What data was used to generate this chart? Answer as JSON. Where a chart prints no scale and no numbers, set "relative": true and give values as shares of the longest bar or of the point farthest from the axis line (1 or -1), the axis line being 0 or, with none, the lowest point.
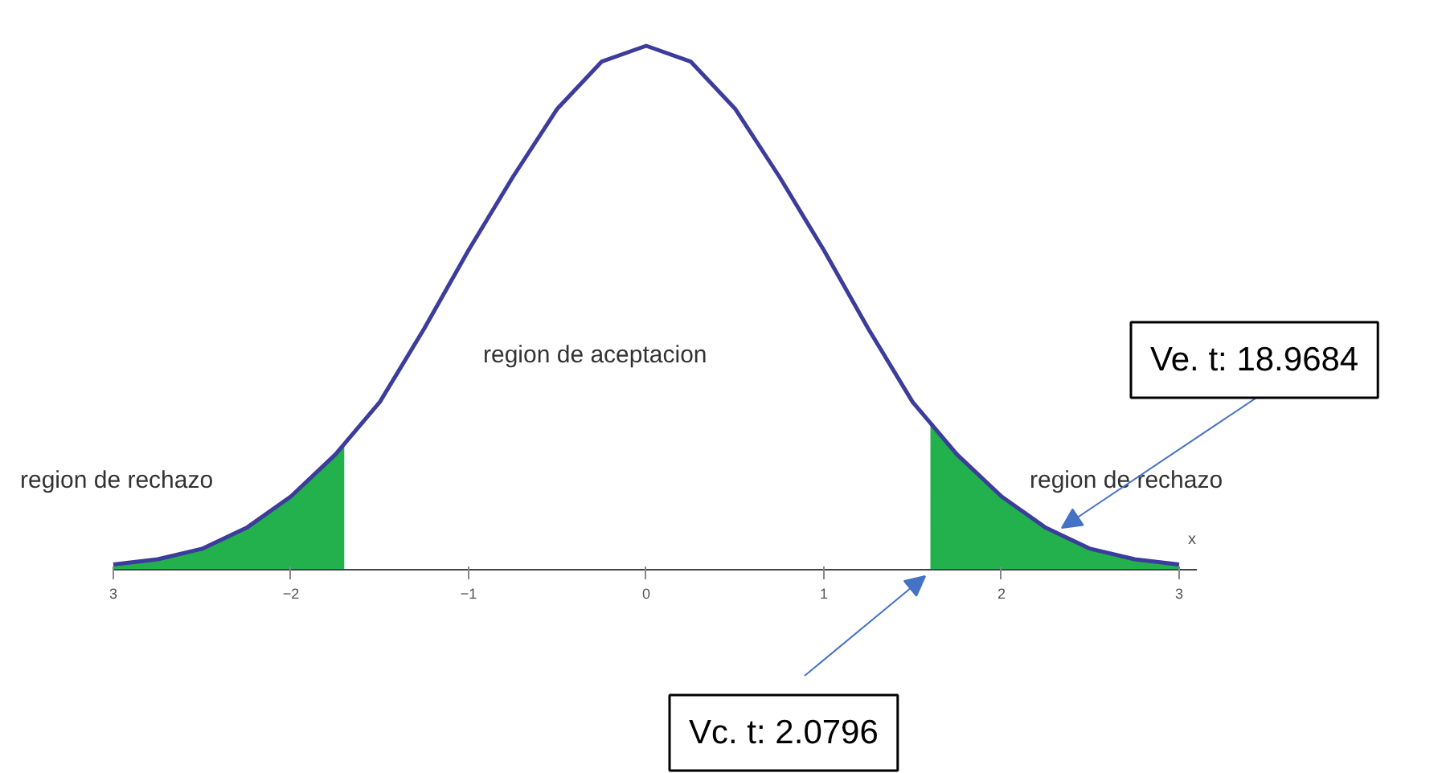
{
  "chart_data": {
    "type": "line",
    "relative": true,
    "xlabel": "x",
    "xlim": [
      -3,
      3.1
    ],
    "xticks": [
      {
        "value": -3,
        "label": "3"
      },
      -2,
      -1,
      0,
      1,
      2,
      3
    ],
    "grid": false,
    "series": [
      {
        "color": "#3c3c9c",
        "x": [
          -3,
          -2.75,
          -2.5,
          -2.25,
          -2,
          -1.75,
          -1.5,
          -1.25,
          -1,
          -0.75,
          -0.5,
          -0.25,
          0,
          0.25,
          0.5,
          0.75,
          1,
          1.25,
          1.5,
          1.75,
          2,
          2.25,
          2.5,
          2.75,
          3
        ],
        "values": [
          0.01,
          0.02,
          0.04,
          0.08,
          0.14,
          0.22,
          0.32,
          0.46,
          0.61,
          0.75,
          0.88,
          0.97,
          1,
          0.97,
          0.88,
          0.75,
          0.61,
          0.46,
          0.32,
          0.22,
          0.14,
          0.08,
          0.04,
          0.02,
          0.01
        ]
      },
      {
        "type": "area",
        "color": "#22b14c",
        "x": [
          -3,
          -2.75,
          -2.5,
          -2.25,
          -2,
          -1.75,
          -1.7
        ],
        "values": [
          0.01,
          0.02,
          0.04,
          0.08,
          0.14,
          0.22,
          0.24
        ]
      },
      {
        "type": "area",
        "color": "#22b14c",
        "x": [
          1.6,
          1.75,
          2,
          2.25,
          2.5,
          2.75,
          3
        ],
        "values": [
          0.28,
          0.22,
          0.14,
          0.08,
          0.04,
          0.02,
          0.01
        ]
      }
    ],
    "annotations": [
      "region de aceptacion",
      "region de rechazo",
      "region de rechazo",
      "Ve. t: 18.9684",
      "Vc. t: 2.0796"
    ]
  }
}
